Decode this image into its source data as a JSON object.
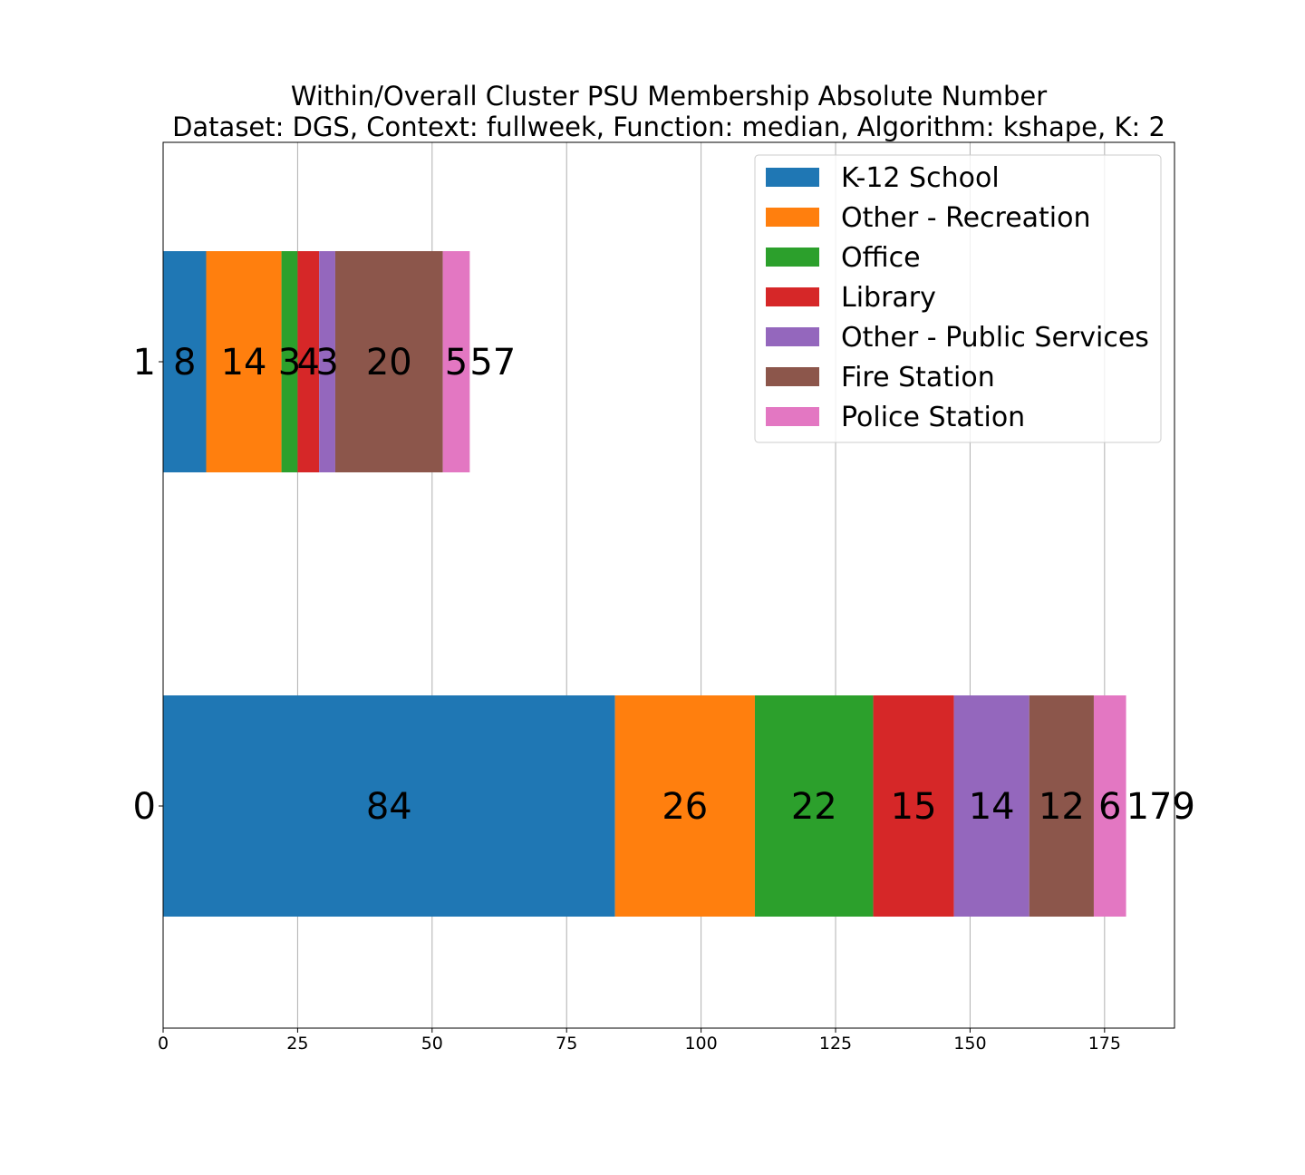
{
  "chart_data": {
    "type": "bar",
    "orientation": "horizontal",
    "stacked": true,
    "title": "Within/Overall Cluster PSU Membership Absolute Number",
    "subtitle": "Dataset: DGS, Context: fullweek, Function: median, Algorithm: kshape, K: 2",
    "xlabel": "",
    "ylabel": "",
    "categories": [
      "0",
      "1"
    ],
    "xlim": [
      0,
      188
    ],
    "xticks": [
      0,
      25,
      50,
      75,
      100,
      125,
      150,
      175
    ],
    "grid": "x",
    "legend_position": "top-right",
    "series": [
      {
        "name": "K-12 School",
        "color": "#1f77b4",
        "values": [
          84,
          8
        ]
      },
      {
        "name": "Other - Recreation",
        "color": "#ff7f0e",
        "values": [
          26,
          14
        ]
      },
      {
        "name": "Office",
        "color": "#2ca02c",
        "values": [
          22,
          3
        ]
      },
      {
        "name": "Library",
        "color": "#d62728",
        "values": [
          15,
          4
        ]
      },
      {
        "name": "Other - Public Services",
        "color": "#9467bd",
        "values": [
          14,
          3
        ]
      },
      {
        "name": "Fire Station",
        "color": "#8c564b",
        "values": [
          12,
          20
        ]
      },
      {
        "name": "Police Station",
        "color": "#e377c2",
        "values": [
          6,
          5
        ]
      }
    ],
    "totals": [
      179,
      57
    ]
  }
}
